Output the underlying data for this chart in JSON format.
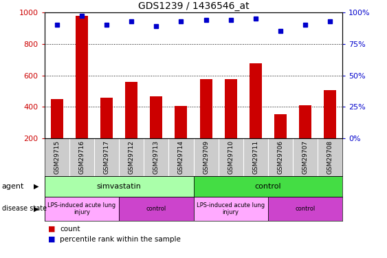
{
  "title": "GDS1239 / 1436546_at",
  "samples": [
    "GSM29715",
    "GSM29716",
    "GSM29717",
    "GSM29712",
    "GSM29713",
    "GSM29714",
    "GSM29709",
    "GSM29710",
    "GSM29711",
    "GSM29706",
    "GSM29707",
    "GSM29708"
  ],
  "counts": [
    450,
    980,
    460,
    560,
    465,
    405,
    578,
    578,
    678,
    355,
    408,
    508
  ],
  "percentiles": [
    90,
    97,
    90,
    93,
    89,
    93,
    94,
    94,
    95,
    85,
    90,
    93
  ],
  "bar_color": "#cc0000",
  "dot_color": "#0000cc",
  "ylim_left": [
    200,
    1000
  ],
  "ylim_right": [
    0,
    100
  ],
  "yticks_left": [
    200,
    400,
    600,
    800,
    1000
  ],
  "yticks_right": [
    0,
    25,
    50,
    75,
    100
  ],
  "agent_labels": [
    {
      "label": "simvastatin",
      "start": 0,
      "end": 6,
      "color": "#aaffaa"
    },
    {
      "label": "control",
      "start": 6,
      "end": 12,
      "color": "#44dd44"
    }
  ],
  "disease_labels": [
    {
      "label": "LPS-induced acute lung\ninjury",
      "start": 0,
      "end": 3,
      "color": "#ffaaff"
    },
    {
      "label": "control",
      "start": 3,
      "end": 6,
      "color": "#cc44cc"
    },
    {
      "label": "LPS-induced acute lung\ninjury",
      "start": 6,
      "end": 9,
      "color": "#ffaaff"
    },
    {
      "label": "control",
      "start": 9,
      "end": 12,
      "color": "#cc44cc"
    }
  ],
  "legend_count_color": "#cc0000",
  "legend_pct_color": "#0000cc",
  "axis_color_left": "#cc0000",
  "axis_color_right": "#0000cc",
  "bg_color": "#ffffff",
  "names_bg": "#cccccc",
  "bar_width": 0.5
}
